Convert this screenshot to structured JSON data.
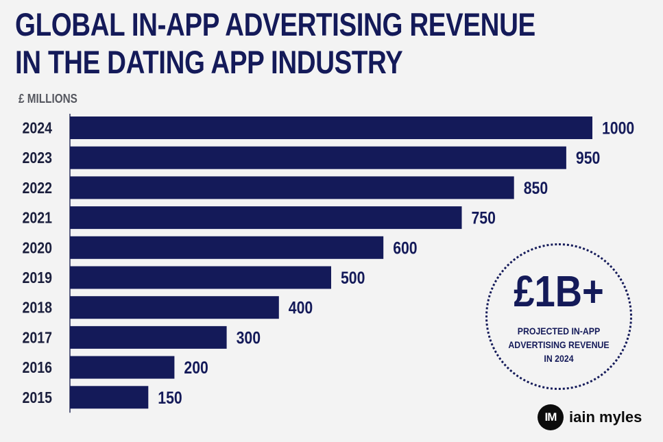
{
  "title": {
    "line1": "GLOBAL IN-APP ADVERTISING REVENUE",
    "line2": "IN THE DATING APP INDUSTRY"
  },
  "unit_label": "£ MILLIONS",
  "chart_data": {
    "type": "bar",
    "orientation": "horizontal",
    "title": "GLOBAL IN-APP ADVERTISING REVENUE IN THE DATING APP INDUSTRY",
    "ylabel": "£ MILLIONS",
    "categories": [
      "2024",
      "2023",
      "2022",
      "2021",
      "2020",
      "2019",
      "2018",
      "2017",
      "2016",
      "2015"
    ],
    "values": [
      1000,
      950,
      850,
      750,
      600,
      500,
      400,
      300,
      200,
      150
    ],
    "data_labels": [
      "1000",
      "950",
      "850",
      "750",
      "600",
      "500",
      "400",
      "300",
      "200",
      "150"
    ],
    "xlim": [
      0,
      1000
    ],
    "grid": false,
    "bar_color": "#141a59"
  },
  "callout": {
    "headline": "£1B+",
    "text_lines": [
      "PROJECTED IN-APP",
      "ADVERTISING REVENUE",
      "IN 2024"
    ]
  },
  "brand": {
    "mark": "IM",
    "name": "iain myles"
  },
  "colors": {
    "navy": "#141a59",
    "background": "#f3f3f3",
    "unit_gray": "#55575f"
  }
}
